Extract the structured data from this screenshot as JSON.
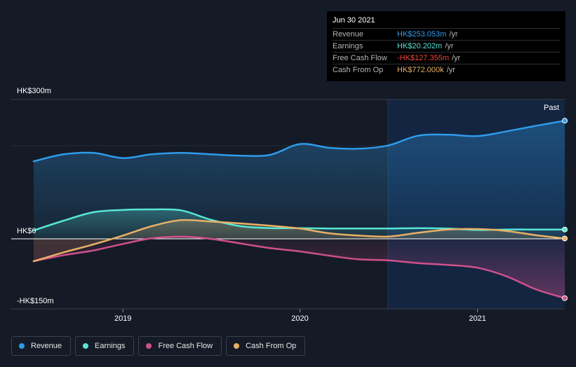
{
  "chart_data": {
    "type": "area",
    "x": [
      "2018-07-01",
      "2018-09-01",
      "2018-11-01",
      "2019-01-01",
      "2019-03-01",
      "2019-05-01",
      "2019-07-01",
      "2019-09-01",
      "2019-11-01",
      "2020-01-01",
      "2020-03-01",
      "2020-05-01",
      "2020-07-01",
      "2020-09-01",
      "2020-11-01",
      "2021-01-01",
      "2021-03-01",
      "2021-05-01",
      "2021-06-30"
    ],
    "y_axis": {
      "top_label": "HK$300m",
      "zero_label": "HK$0",
      "bottom_label": "-HK$150m",
      "ylim": [
        -150,
        300
      ]
    },
    "x_ticks": [
      "2019",
      "2020",
      "2021"
    ],
    "past_label": "Past",
    "series": [
      {
        "name": "Revenue",
        "color": "#2f9bea",
        "values": [
          166,
          181,
          184,
          173,
          181,
          184,
          181,
          178,
          180,
          203,
          195,
          193,
          200,
          221,
          223,
          220,
          230,
          242,
          253
        ]
      },
      {
        "name": "Earnings",
        "color": "#58e6d6",
        "values": [
          18,
          39,
          57,
          62,
          63,
          61,
          41,
          27,
          23,
          23,
          22,
          22,
          22,
          23,
          22,
          19,
          20,
          20,
          20
        ]
      },
      {
        "name": "Free Cash Flow",
        "color": "#d0508c",
        "values": [
          -48,
          -35,
          -25,
          -11,
          1,
          5,
          0,
          -10,
          -20,
          -27,
          -36,
          -44,
          -46,
          -52,
          -56,
          -62,
          -80,
          -108,
          -127
        ]
      },
      {
        "name": "Cash From Op",
        "color": "#e8b065",
        "values": [
          -48,
          -29,
          -12,
          7,
          27,
          40,
          37,
          33,
          28,
          22,
          12,
          7,
          5,
          13,
          20,
          21,
          17,
          8,
          0.772
        ]
      }
    ],
    "tooltip": {
      "date": "Jun 30 2021",
      "rows": [
        {
          "label": "Revenue",
          "value": "HK$253.053m",
          "unit": "/yr",
          "color": "#2f9bea"
        },
        {
          "label": "Earnings",
          "value": "HK$20.202m",
          "unit": "/yr",
          "color": "#58e6d6"
        },
        {
          "label": "Free Cash Flow",
          "value": "-HK$127.355m",
          "unit": "/yr",
          "color": "#f0433a"
        },
        {
          "label": "Cash From Op",
          "value": "HK$772.000k",
          "unit": "/yr",
          "color": "#e8b065"
        }
      ]
    },
    "legend": [
      "Revenue",
      "Earnings",
      "Free Cash Flow",
      "Cash From Op"
    ],
    "grid": true
  }
}
